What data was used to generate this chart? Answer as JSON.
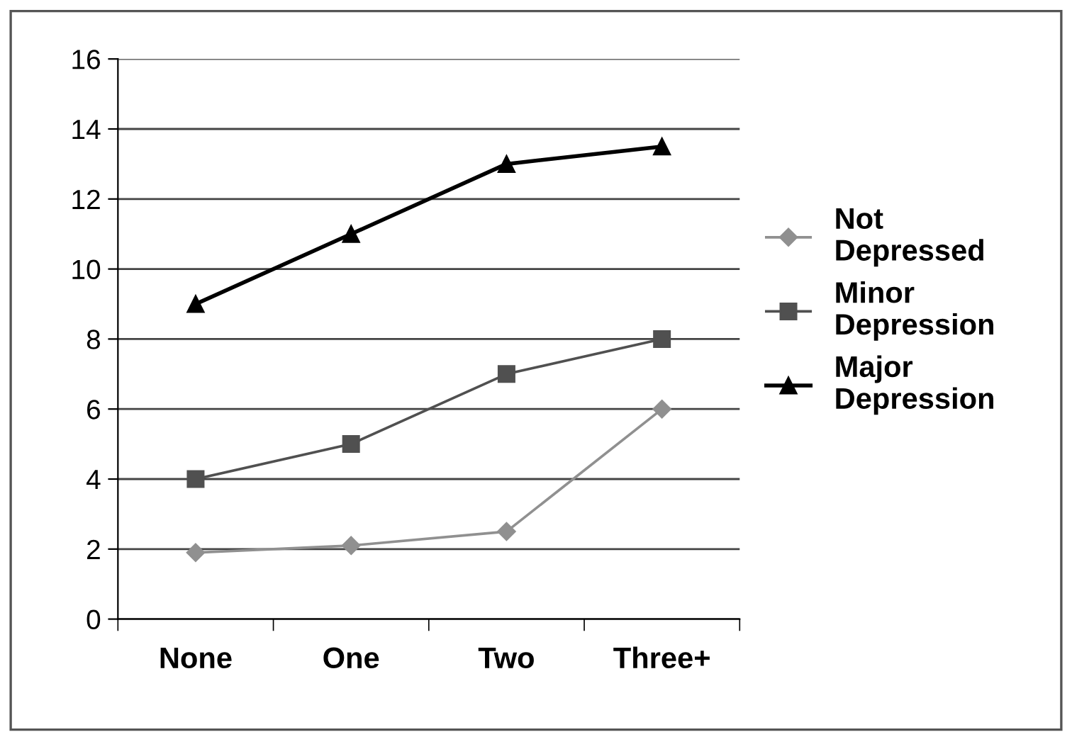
{
  "chart_data": {
    "type": "line",
    "categories": [
      "None",
      "One",
      "Two",
      "Three+"
    ],
    "series": [
      {
        "name": "Not Depressed",
        "color": "#909090",
        "marker": "diamond",
        "values": [
          1.9,
          2.1,
          2.5,
          6
        ]
      },
      {
        "name": "Minor Depression",
        "color": "#505050",
        "marker": "square",
        "values": [
          4,
          5,
          7,
          8
        ]
      },
      {
        "name": "Major Depression",
        "color": "#000000",
        "marker": "triangle",
        "values": [
          9,
          11,
          13,
          13.5
        ]
      }
    ],
    "ylim": [
      0,
      16
    ],
    "yticks": [
      0,
      2,
      4,
      6,
      8,
      10,
      12,
      14,
      16
    ],
    "grid": "y",
    "legend": "right"
  }
}
